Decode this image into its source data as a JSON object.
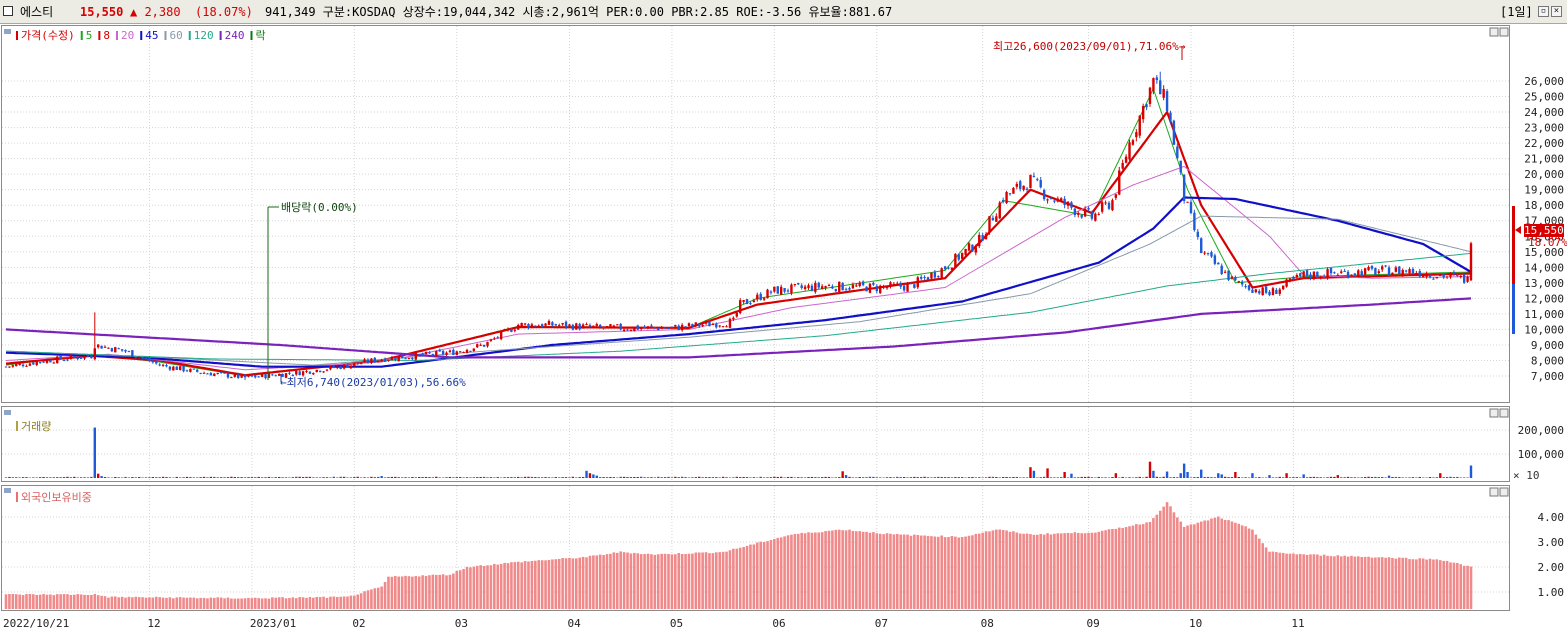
{
  "header": {
    "name": "에스티",
    "price": "15,550",
    "change": "▲ 2,380",
    "change_pct": "(18.07%)",
    "info": "941,349  구분:KOSDAQ 상장수:19,044,342 시총:2,961억  PER:0.00 PBR:2.85 ROE:-3.56 유보율:881.67",
    "period": "[1일]",
    "colors": {
      "up": "#d60000",
      "text": "#000000"
    }
  },
  "price_panel": {
    "legend": [
      {
        "label": "가격(수정)",
        "color": "#d60000"
      },
      {
        "label": "5",
        "color": "#1aaa1a"
      },
      {
        "label": "8",
        "color": "#d60000"
      },
      {
        "label": "20",
        "color": "#cc66cc"
      },
      {
        "label": "45",
        "color": "#1010c8"
      },
      {
        "label": "60",
        "color": "#8899aa"
      },
      {
        "label": "120",
        "color": "#22aa88"
      },
      {
        "label": "240",
        "color": "#7a22bb"
      },
      {
        "label": "락",
        "color": "#117711"
      }
    ],
    "annotations": {
      "high": "최고26,600(2023/09/01),71.06%→",
      "low": "←최저6,740(2023/01/03),56.66%",
      "dividend": "배당락(0.00%)"
    },
    "price_tag": "15,550",
    "pct_tag": "18.07%"
  },
  "volume_panel": {
    "legend": "거래량",
    "unit": "× 10"
  },
  "foreign_panel": {
    "legend": "외국인보유비중"
  },
  "chart_data": [
    {
      "type": "candlestick",
      "title": "가격(수정)",
      "ylim": [
        6000,
        27000
      ],
      "yticks": [
        7000,
        8000,
        9000,
        10000,
        11000,
        12000,
        13000,
        14000,
        15000,
        16000,
        17000,
        18000,
        19000,
        20000,
        21000,
        22000,
        23000,
        24000,
        25000,
        26000
      ],
      "ytick_labels": [
        "7,000",
        "8,000",
        "9,000",
        "10,000",
        "11,000",
        "12,000",
        "13,000",
        "14,000",
        "15,000",
        "16,000",
        "17,000",
        "18,000",
        "19,000",
        "20,000",
        "21,000",
        "22,000",
        "23,000",
        "24,000",
        "25,000",
        "26,000"
      ],
      "x_labels": [
        "2022/10/21",
        "12",
        "2023/01",
        "02",
        "03",
        "04",
        "05",
        "06",
        "07",
        "08",
        "09",
        "10",
        "11"
      ],
      "close_keypoints": [
        [
          0,
          7600
        ],
        [
          12,
          8000
        ],
        [
          25,
          8300
        ],
        [
          26,
          9000
        ],
        [
          35,
          8600
        ],
        [
          45,
          7700
        ],
        [
          55,
          7300
        ],
        [
          70,
          6900
        ],
        [
          85,
          7200
        ],
        [
          98,
          7600
        ],
        [
          110,
          8100
        ],
        [
          130,
          8500
        ],
        [
          140,
          9000
        ],
        [
          150,
          10300
        ],
        [
          160,
          10300
        ],
        [
          175,
          10100
        ],
        [
          195,
          10100
        ],
        [
          213,
          10500
        ],
        [
          215,
          11600
        ],
        [
          225,
          12500
        ],
        [
          240,
          12800
        ],
        [
          255,
          12700
        ],
        [
          265,
          12800
        ],
        [
          275,
          14000
        ],
        [
          285,
          15700
        ],
        [
          292,
          18500
        ],
        [
          300,
          19600
        ],
        [
          305,
          18600
        ],
        [
          318,
          17200
        ],
        [
          324,
          18300
        ],
        [
          329,
          22000
        ],
        [
          336,
          26000
        ],
        [
          340,
          24500
        ],
        [
          345,
          18500
        ],
        [
          350,
          15000
        ],
        [
          360,
          13000
        ],
        [
          370,
          12300
        ],
        [
          380,
          13500
        ],
        [
          395,
          13700
        ],
        [
          410,
          13800
        ],
        [
          420,
          13500
        ],
        [
          428,
          13200
        ],
        [
          429,
          15550
        ]
      ],
      "wick_spikes": [
        {
          "index": 26,
          "high": 11100
        },
        {
          "index": 338,
          "high": 26600
        },
        {
          "index": 70,
          "low": 6740
        }
      ],
      "ma_lines": [
        {
          "name": "5",
          "points": [
            [
              0,
              7700
            ],
            [
              25,
              8400
            ],
            [
              45,
              7900
            ],
            [
              70,
              7000
            ],
            [
              110,
              8000
            ],
            [
              150,
              10200
            ],
            [
              200,
              10100
            ],
            [
              220,
              12000
            ],
            [
              275,
              13800
            ],
            [
              292,
              18300
            ],
            [
              318,
              17300
            ],
            [
              336,
              25500
            ],
            [
              346,
              19000
            ],
            [
              360,
              13000
            ],
            [
              380,
              13400
            ],
            [
              429,
              13700
            ]
          ]
        },
        {
          "name": "8",
          "points": [
            [
              0,
              7800
            ],
            [
              25,
              8300
            ],
            [
              45,
              8000
            ],
            [
              70,
              7050
            ],
            [
              110,
              8000
            ],
            [
              150,
              10150
            ],
            [
              200,
              10100
            ],
            [
              220,
              11600
            ],
            [
              275,
              13300
            ],
            [
              300,
              19000
            ],
            [
              318,
              17500
            ],
            [
              340,
              24000
            ],
            [
              350,
              18000
            ],
            [
              365,
              12700
            ],
            [
              380,
              13300
            ],
            [
              429,
              13600
            ]
          ]
        },
        {
          "name": "20",
          "points": [
            [
              0,
              8000
            ],
            [
              30,
              8400
            ],
            [
              70,
              7400
            ],
            [
              110,
              7900
            ],
            [
              150,
              9700
            ],
            [
              200,
              10000
            ],
            [
              230,
              11400
            ],
            [
              275,
              12700
            ],
            [
              310,
              17200
            ],
            [
              330,
              19300
            ],
            [
              345,
              20500
            ],
            [
              370,
              16000
            ],
            [
              380,
              13500
            ],
            [
              400,
              13300
            ],
            [
              429,
              13400
            ]
          ]
        },
        {
          "name": "45",
          "points": [
            [
              0,
              8500
            ],
            [
              40,
              8200
            ],
            [
              75,
              7600
            ],
            [
              110,
              7600
            ],
            [
              160,
              9000
            ],
            [
              200,
              9700
            ],
            [
              240,
              10600
            ],
            [
              280,
              11800
            ],
            [
              320,
              14300
            ],
            [
              336,
              16500
            ],
            [
              345,
              18500
            ],
            [
              360,
              18400
            ],
            [
              390,
              17000
            ],
            [
              415,
              15500
            ],
            [
              429,
              13700
            ]
          ]
        },
        {
          "name": "60",
          "points": [
            [
              0,
              8600
            ],
            [
              45,
              8200
            ],
            [
              90,
              7700
            ],
            [
              140,
              8600
            ],
            [
              200,
              9500
            ],
            [
              250,
              10500
            ],
            [
              300,
              12300
            ],
            [
              335,
              15500
            ],
            [
              350,
              17300
            ],
            [
              390,
              17100
            ],
            [
              429,
              15000
            ]
          ]
        },
        {
          "name": "120",
          "points": [
            [
              0,
              8600
            ],
            [
              60,
              8100
            ],
            [
              120,
              8000
            ],
            [
              180,
              8600
            ],
            [
              240,
              9600
            ],
            [
              300,
              11100
            ],
            [
              340,
              12800
            ],
            [
              370,
              13600
            ],
            [
              429,
              14900
            ]
          ]
        },
        {
          "name": "240",
          "points": [
            [
              0,
              10000
            ],
            [
              80,
              9000
            ],
            [
              130,
              8200
            ],
            [
              200,
              8200
            ],
            [
              260,
              8900
            ],
            [
              310,
              9800
            ],
            [
              350,
              11000
            ],
            [
              400,
              11600
            ],
            [
              429,
              12000
            ]
          ]
        }
      ]
    },
    {
      "type": "bar",
      "title": "거래량",
      "unit": "× 10",
      "ylim": [
        0,
        280000
      ],
      "yticks": [
        100000,
        200000
      ],
      "ytick_labels": [
        "100,000",
        "200,000"
      ],
      "base_level": 3500,
      "spikes": [
        [
          26,
          210000
        ],
        [
          27,
          18000
        ],
        [
          28,
          8000
        ],
        [
          110,
          8000
        ],
        [
          170,
          30000
        ],
        [
          171,
          20000
        ],
        [
          172,
          15000
        ],
        [
          173,
          10000
        ],
        [
          245,
          28000
        ],
        [
          246,
          12000
        ],
        [
          300,
          45000
        ],
        [
          301,
          30000
        ],
        [
          305,
          40000
        ],
        [
          310,
          25000
        ],
        [
          312,
          18000
        ],
        [
          325,
          20000
        ],
        [
          335,
          68000
        ],
        [
          336,
          30000
        ],
        [
          340,
          27000
        ],
        [
          344,
          20000
        ],
        [
          345,
          60000
        ],
        [
          346,
          25000
        ],
        [
          350,
          35000
        ],
        [
          355,
          20000
        ],
        [
          356,
          15000
        ],
        [
          360,
          25000
        ],
        [
          365,
          20000
        ],
        [
          370,
          12000
        ],
        [
          375,
          20000
        ],
        [
          380,
          15000
        ],
        [
          390,
          12000
        ],
        [
          405,
          10000
        ],
        [
          420,
          20000
        ],
        [
          429,
          52000
        ]
      ],
      "colored_blue": [
        28,
        173,
        246,
        301,
        312,
        336,
        344,
        345,
        346,
        355,
        356,
        370,
        380,
        405
      ]
    },
    {
      "type": "bar",
      "title": "외국인보유비중",
      "ylim": [
        0.5,
        5.0
      ],
      "yticks": [
        1,
        2,
        3,
        4
      ],
      "ytick_labels": [
        "1.00",
        "2.00",
        "3.00",
        "4.00"
      ],
      "keypoints": [
        [
          0,
          0.9
        ],
        [
          26,
          0.9
        ],
        [
          30,
          0.8
        ],
        [
          70,
          0.75
        ],
        [
          100,
          0.8
        ],
        [
          110,
          1.2
        ],
        [
          112,
          1.6
        ],
        [
          130,
          1.7
        ],
        [
          135,
          2.0
        ],
        [
          150,
          2.2
        ],
        [
          170,
          2.4
        ],
        [
          180,
          2.6
        ],
        [
          190,
          2.5
        ],
        [
          210,
          2.6
        ],
        [
          230,
          3.3
        ],
        [
          245,
          3.5
        ],
        [
          260,
          3.3
        ],
        [
          280,
          3.2
        ],
        [
          290,
          3.5
        ],
        [
          300,
          3.3
        ],
        [
          320,
          3.4
        ],
        [
          335,
          3.8
        ],
        [
          340,
          4.6
        ],
        [
          345,
          3.6
        ],
        [
          355,
          4.0
        ],
        [
          365,
          3.5
        ],
        [
          370,
          2.6
        ],
        [
          380,
          2.5
        ],
        [
          400,
          2.4
        ],
        [
          420,
          2.3
        ],
        [
          429,
          2.0
        ]
      ]
    }
  ]
}
